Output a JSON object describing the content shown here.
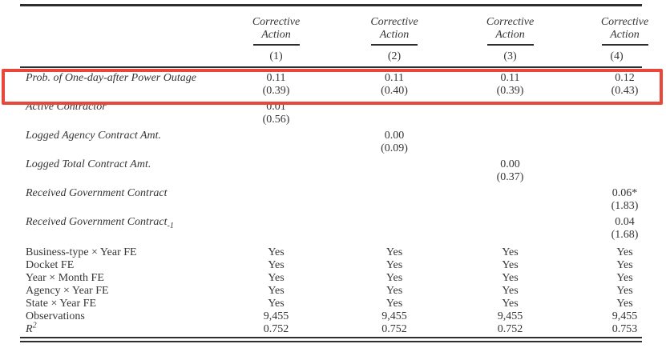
{
  "highlight": {
    "border_color": "#e8473a"
  },
  "rules": {
    "color": "#2e2e2e"
  },
  "table": {
    "dependent_variable_header": "Corrective Action",
    "model_numbers": [
      "(1)",
      "(2)",
      "(3)",
      "(4)"
    ],
    "coefficient_rows": [
      {
        "label": "Prob. of One-day-after Power Outage",
        "highlighted": true,
        "estimates": [
          "0.11",
          "0.11",
          "0.11",
          "0.12"
        ],
        "t_stats": [
          "(0.39)",
          "(0.40)",
          "(0.39)",
          "(0.43)"
        ]
      },
      {
        "label": "Active Contractor",
        "estimates": [
          "0.01",
          "",
          "",
          ""
        ],
        "t_stats": [
          "(0.56)",
          "",
          "",
          ""
        ]
      },
      {
        "label": "Logged Agency Contract Amt.",
        "estimates": [
          "",
          "0.00",
          "",
          ""
        ],
        "t_stats": [
          "",
          "(0.09)",
          "",
          ""
        ]
      },
      {
        "label": "Logged Total Contract Amt.",
        "estimates": [
          "",
          "",
          "0.00",
          ""
        ],
        "t_stats": [
          "",
          "",
          "(0.37)",
          ""
        ]
      },
      {
        "label": "Received Government Contract",
        "estimates": [
          "",
          "",
          "",
          "0.06*"
        ],
        "t_stats": [
          "",
          "",
          "",
          "(1.83)"
        ]
      },
      {
        "label": "Received Government Contract",
        "label_subscript": "-1",
        "estimates": [
          "",
          "",
          "",
          "0.04"
        ],
        "t_stats": [
          "",
          "",
          "",
          "(1.68)"
        ]
      }
    ],
    "summary_rows": [
      {
        "label": "Business-type × Year FE",
        "values": [
          "Yes",
          "Yes",
          "Yes",
          "Yes"
        ]
      },
      {
        "label": "Docket FE",
        "values": [
          "Yes",
          "Yes",
          "Yes",
          "Yes"
        ]
      },
      {
        "label": "Year × Month FE",
        "values": [
          "Yes",
          "Yes",
          "Yes",
          "Yes"
        ]
      },
      {
        "label": "Agency × Year FE",
        "values": [
          "Yes",
          "Yes",
          "Yes",
          "Yes"
        ]
      },
      {
        "label": "State × Year FE",
        "values": [
          "Yes",
          "Yes",
          "Yes",
          "Yes"
        ]
      },
      {
        "label": "Observations",
        "values": [
          "9,455",
          "9,455",
          "9,455",
          "9,455"
        ]
      },
      {
        "label": "R",
        "label_superscript": "2",
        "label_italic": true,
        "values": [
          "0.752",
          "0.752",
          "0.752",
          "0.753"
        ]
      }
    ]
  }
}
